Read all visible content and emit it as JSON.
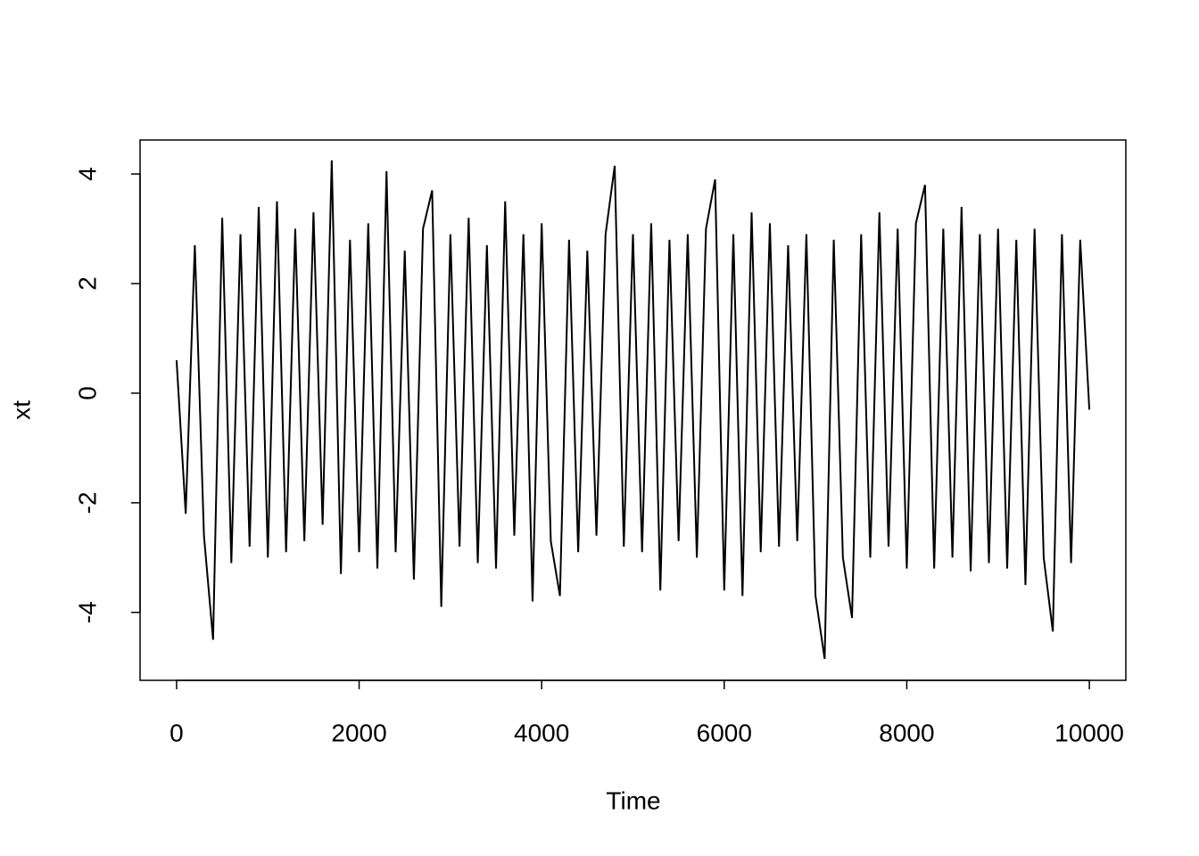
{
  "chart_data": {
    "type": "line",
    "x_label": "Time",
    "y_label": "xt",
    "x": [
      0,
      100,
      200,
      300,
      400,
      500,
      600,
      700,
      800,
      900,
      1000,
      1100,
      1200,
      1300,
      1400,
      1500,
      1600,
      1700,
      1800,
      1900,
      2000,
      2100,
      2200,
      2300,
      2400,
      2500,
      2600,
      2700,
      2800,
      2900,
      3000,
      3100,
      3200,
      3300,
      3400,
      3500,
      3600,
      3700,
      3800,
      3900,
      4000,
      4100,
      4200,
      4300,
      4400,
      4500,
      4600,
      4700,
      4800,
      4900,
      5000,
      5100,
      5200,
      5300,
      5400,
      5500,
      5600,
      5700,
      5800,
      5900,
      6000,
      6100,
      6200,
      6300,
      6400,
      6500,
      6600,
      6700,
      6800,
      6900,
      7000,
      7100,
      7200,
      7300,
      7400,
      7500,
      7600,
      7700,
      7800,
      7900,
      8000,
      8100,
      8200,
      8300,
      8400,
      8500,
      8600,
      8700,
      8800,
      8900,
      9000,
      9100,
      9200,
      9300,
      9400,
      9500,
      9600,
      9700,
      9800,
      9900,
      10000
    ],
    "values": [
      0.6,
      -2.2,
      2.7,
      -2.6,
      -4.5,
      3.2,
      -3.1,
      2.9,
      -2.8,
      3.4,
      -3.0,
      3.5,
      -2.9,
      3.0,
      -2.7,
      3.3,
      -2.4,
      4.25,
      -3.3,
      2.8,
      -2.9,
      3.1,
      -3.2,
      4.05,
      -2.9,
      2.6,
      -3.4,
      3.0,
      3.7,
      -3.9,
      2.9,
      -2.8,
      3.2,
      -3.1,
      2.7,
      -3.2,
      3.5,
      -2.6,
      2.9,
      -3.8,
      3.1,
      -2.7,
      -3.7,
      2.8,
      -2.9,
      2.6,
      -2.6,
      2.9,
      4.15,
      -2.8,
      2.9,
      -2.9,
      3.1,
      -3.6,
      2.8,
      -2.7,
      2.9,
      -3.0,
      3.0,
      3.9,
      -3.6,
      2.9,
      -3.7,
      3.3,
      -2.9,
      3.1,
      -2.8,
      2.7,
      -2.7,
      2.9,
      -3.7,
      -4.85,
      2.8,
      -3.0,
      -4.1,
      2.9,
      -3.0,
      3.3,
      -2.8,
      3.0,
      -3.2,
      3.1,
      3.8,
      -3.2,
      3.0,
      -3.0,
      3.4,
      -3.25,
      2.9,
      -3.1,
      3.0,
      -3.2,
      2.8,
      -3.5,
      3.0,
      -3.0,
      -4.35,
      2.9,
      -3.1,
      2.8,
      -0.3
    ],
    "color": "#000000",
    "xlim": [
      -400,
      10400
    ],
    "xticks": [
      0,
      2000,
      4000,
      6000,
      8000,
      10000
    ],
    "ylim": [
      -5.24,
      4.62
    ],
    "yticks": [
      -4,
      -2,
      0,
      2,
      4
    ]
  }
}
